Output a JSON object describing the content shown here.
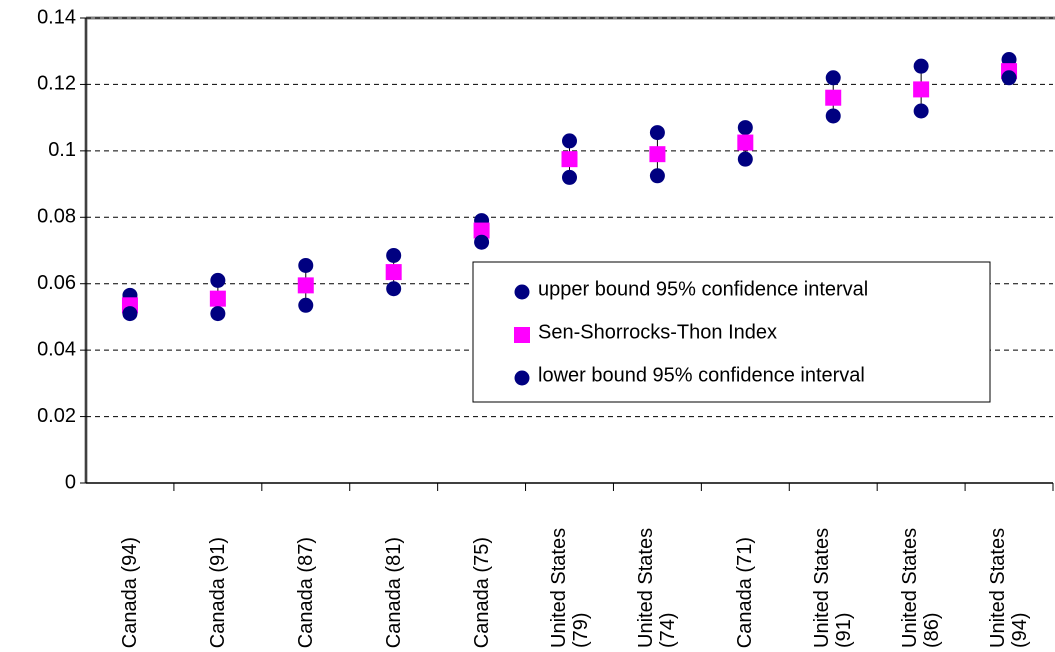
{
  "chart_data": {
    "type": "dot",
    "categories": [
      "Canada (94)",
      "Canada (91)",
      "Canada (87)",
      "Canada (81)",
      "Canada (75)",
      "United States (79)",
      "United States (74)",
      "Canada (71)",
      "United States (91)",
      "United States (86)",
      "United States (94)"
    ],
    "series": [
      {
        "name": "upper bound 95% confidence interval",
        "color": "#000080",
        "marker": "circle",
        "values": [
          0.0565,
          0.061,
          0.0655,
          0.0685,
          0.079,
          0.103,
          0.1055,
          0.107,
          0.122,
          0.1255,
          0.1275
        ]
      },
      {
        "name": "Sen-Shorrocks-Thon Index",
        "color": "#ff00ff",
        "marker": "square",
        "values": [
          0.0535,
          0.0555,
          0.0595,
          0.0635,
          0.076,
          0.0975,
          0.099,
          0.1025,
          0.116,
          0.1185,
          0.124
        ]
      },
      {
        "name": "lower bound 95% confidence interval",
        "color": "#000080",
        "marker": "circle",
        "values": [
          0.051,
          0.051,
          0.0535,
          0.0585,
          0.0725,
          0.092,
          0.0925,
          0.0975,
          0.1105,
          0.112,
          0.122
        ]
      }
    ],
    "ylim": [
      0,
      0.14
    ],
    "yticks": [
      0,
      0.02,
      0.04,
      0.06,
      0.08,
      0.1,
      0.12,
      0.14
    ],
    "grid": true
  }
}
